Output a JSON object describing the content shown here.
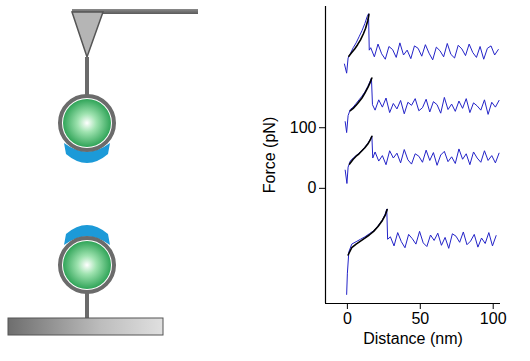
{
  "chart_data": {
    "type": "line",
    "x_label": "Distance (nm)",
    "y_label": "Force (pN)",
    "xlim": [
      -15,
      105
    ],
    "ylim": [
      -190,
      300
    ],
    "xticks": [
      0,
      50,
      100
    ],
    "yticks": [
      0,
      100
    ],
    "grid": false,
    "series": [
      {
        "color": "#2323c8",
        "x": [
          -2,
          -0.5,
          0.5,
          2,
          4,
          6,
          8,
          10,
          12,
          13.5,
          14.5,
          15,
          16,
          18.5,
          21,
          23.5,
          26,
          28.5,
          31,
          33.5,
          36,
          38.5,
          41,
          43.5,
          46,
          48.5,
          51,
          53.5,
          56,
          58.5,
          61,
          63.5,
          66,
          68.5,
          71,
          73.5,
          76,
          78.5,
          81,
          83.5,
          86,
          88.5,
          91,
          93.5,
          96,
          98.5,
          101,
          103.5
        ],
        "values": [
          205,
          190,
          215,
          222,
          232,
          240,
          250,
          260,
          272,
          283,
          288,
          228,
          232,
          217,
          238,
          222,
          213,
          234,
          229,
          216,
          240,
          220,
          228,
          214,
          235,
          231,
          218,
          237,
          223,
          212,
          233,
          227,
          217,
          239,
          221,
          215,
          236,
          230,
          219,
          238,
          224,
          216,
          234,
          213,
          231,
          235,
          220,
          229
        ]
      },
      {
        "color": "#2323c8",
        "x": [
          -1.5,
          -0.5,
          0.5,
          2,
          4,
          6,
          8,
          10,
          12,
          14,
          15.5,
          16.5,
          17.2,
          19,
          21.5,
          24,
          26.5,
          29,
          31.5,
          34,
          36.5,
          39,
          41.5,
          44,
          46.5,
          49,
          51.5,
          54,
          56.5,
          59,
          61.5,
          64,
          66.5,
          69,
          71.5,
          74,
          76.5,
          79,
          81.5,
          84,
          86.5,
          89,
          91.5,
          94,
          96.5,
          99,
          101.5,
          104
        ],
        "values": [
          110,
          92,
          120,
          130,
          134,
          140,
          146,
          152,
          159,
          168,
          176,
          182,
          138,
          129,
          146,
          134,
          149,
          125,
          140,
          131,
          145,
          123,
          142,
          137,
          148,
          128,
          133,
          147,
          126,
          143,
          138,
          124,
          150,
          130,
          139,
          127,
          144,
          132,
          148,
          125,
          141,
          136,
          129,
          146,
          122,
          142,
          134,
          145
        ]
      },
      {
        "color": "#2323c8",
        "x": [
          -1.5,
          -0.3,
          0.5,
          2,
          4,
          6,
          8,
          10,
          12,
          14,
          15.5,
          16.8,
          17.4,
          19,
          21.5,
          24,
          26.5,
          29,
          31.5,
          34,
          36.5,
          39,
          41.5,
          44,
          46.5,
          49,
          51.5,
          54,
          56.5,
          59,
          61.5,
          64,
          66.5,
          69,
          71.5,
          74,
          76.5,
          79,
          81.5,
          84,
          86.5,
          89,
          91.5,
          94,
          96.5,
          99,
          101.5,
          104
        ],
        "values": [
          30,
          8,
          35,
          45,
          50,
          54,
          58,
          63,
          68,
          74,
          80,
          86,
          50,
          60,
          45,
          54,
          39,
          62,
          50,
          58,
          42,
          64,
          47,
          40,
          57,
          53,
          43,
          63,
          46,
          59,
          38,
          55,
          61,
          44,
          52,
          41,
          65,
          48,
          57,
          39,
          60,
          50,
          43,
          62,
          46,
          54,
          42,
          58
        ]
      },
      {
        "color": "#2323c8",
        "x": [
          -0.5,
          0,
          1,
          3,
          6,
          9,
          12,
          15,
          18,
          21,
          24,
          26,
          27,
          27.6,
          29.5,
          32,
          34.5,
          37,
          39.5,
          42,
          44.5,
          47,
          49.5,
          52,
          54.5,
          57,
          59.5,
          62,
          64.5,
          67,
          69.5,
          72,
          74.5,
          77,
          79.5,
          82,
          84.5,
          87,
          89.5,
          92,
          94.5,
          97,
          99.5,
          102
        ],
        "values": [
          -175,
          -140,
          -105,
          -92,
          -88,
          -84,
          -80,
          -75,
          -70,
          -62,
          -52,
          -42,
          -34,
          -84,
          -80,
          -95,
          -73,
          -88,
          -98,
          -76,
          -83,
          -92,
          -71,
          -90,
          -96,
          -77,
          -86,
          -74,
          -94,
          -81,
          -99,
          -75,
          -79,
          -89,
          -72,
          -93,
          -87,
          -76,
          -97,
          -82,
          -91,
          -73,
          -95,
          -78
        ]
      },
      {
        "color": "#000000",
        "x": [
          1,
          3,
          5,
          7,
          9,
          11,
          12.5,
          14,
          14.8
        ],
        "values": [
          218,
          224,
          230,
          237,
          245,
          255,
          264,
          277,
          287
        ]
      },
      {
        "color": "#000000",
        "x": [
          2,
          4,
          6,
          8,
          10,
          12,
          14,
          15.5,
          16.8
        ],
        "values": [
          128,
          132,
          137,
          143,
          149,
          157,
          166,
          174,
          182
        ]
      },
      {
        "color": "#000000",
        "x": [
          1.5,
          4,
          6,
          8,
          10,
          12,
          14,
          15.5,
          16.8
        ],
        "values": [
          40,
          48,
          53,
          57,
          62,
          67,
          73,
          79,
          86
        ]
      },
      {
        "color": "#000000",
        "x": [
          0.5,
          3,
          6,
          9,
          12,
          15,
          18,
          21,
          24,
          26,
          27.3
        ],
        "values": [
          -110,
          -98,
          -92,
          -87,
          -82,
          -77,
          -71,
          -63,
          -53,
          -44,
          -35
        ]
      }
    ]
  }
}
